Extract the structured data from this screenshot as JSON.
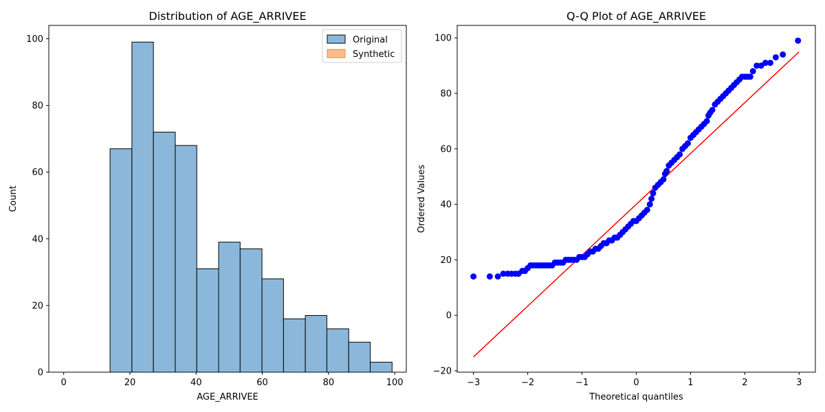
{
  "chart_data": [
    {
      "type": "bar",
      "title": "Distribution of AGE_ARRIVEE",
      "xlabel": "AGE_ARRIVEE",
      "ylabel": "Count",
      "xlim": [
        -4.5,
        103.5
      ],
      "ylim": [
        0,
        104
      ],
      "xticks": [
        0,
        20,
        40,
        60,
        80,
        100
      ],
      "yticks": [
        0,
        20,
        40,
        60,
        80,
        100
      ],
      "bin_edges": [
        14,
        20.6,
        27.1,
        33.7,
        40.2,
        46.8,
        53.3,
        59.9,
        66.4,
        73.0,
        79.5,
        86.1,
        92.6,
        99.2
      ],
      "series": [
        {
          "name": "Original",
          "values": [
            67,
            99,
            72,
            68,
            31,
            39,
            37,
            28,
            16,
            17,
            13,
            9,
            3
          ],
          "color": "#8bb8da",
          "edge": "#000000"
        },
        {
          "name": "Synthetic",
          "values": [],
          "color": "#ffbb88",
          "edge": "#e08c4a"
        }
      ],
      "legend": "top-right"
    },
    {
      "type": "scatter",
      "title": "Q-Q Plot of AGE_ARRIVEE",
      "xlabel": "Theoretical quantiles",
      "ylabel": "Ordered Values",
      "xlim": [
        -3.3,
        3.3
      ],
      "ylim": [
        -20.5,
        104.5
      ],
      "xticks": [
        -3,
        -2,
        -1,
        0,
        1,
        2,
        3
      ],
      "yticks": [
        -20,
        0,
        20,
        40,
        60,
        80,
        100
      ],
      "points_color": "#0000ff",
      "line_color": "#ff0000",
      "fit_line": {
        "x": [
          -3,
          3
        ],
        "y": [
          -15,
          95
        ]
      },
      "points": [
        [
          -3.0,
          14
        ],
        [
          -2.7,
          14
        ],
        [
          -2.55,
          14
        ],
        [
          -2.45,
          15
        ],
        [
          -2.37,
          15
        ],
        [
          -2.3,
          15
        ],
        [
          -2.23,
          15
        ],
        [
          -2.17,
          15
        ],
        [
          -2.1,
          16
        ],
        [
          -2.05,
          16
        ],
        [
          -2.0,
          17
        ],
        [
          -1.95,
          18
        ],
        [
          -1.9,
          18
        ],
        [
          -1.85,
          18
        ],
        [
          -1.8,
          18
        ],
        [
          -1.75,
          18
        ],
        [
          -1.7,
          18
        ],
        [
          -1.65,
          18
        ],
        [
          -1.6,
          18
        ],
        [
          -1.55,
          18
        ],
        [
          -1.5,
          19
        ],
        [
          -1.45,
          19
        ],
        [
          -1.4,
          19
        ],
        [
          -1.35,
          19
        ],
        [
          -1.3,
          20
        ],
        [
          -1.25,
          20
        ],
        [
          -1.2,
          20
        ],
        [
          -1.15,
          20
        ],
        [
          -1.1,
          20
        ],
        [
          -1.05,
          21
        ],
        [
          -1.0,
          21
        ],
        [
          -0.95,
          21
        ],
        [
          -0.9,
          22
        ],
        [
          -0.85,
          23
        ],
        [
          -0.8,
          23
        ],
        [
          -0.75,
          24
        ],
        [
          -0.7,
          24
        ],
        [
          -0.65,
          25
        ],
        [
          -0.6,
          26
        ],
        [
          -0.55,
          26
        ],
        [
          -0.5,
          27
        ],
        [
          -0.45,
          27
        ],
        [
          -0.4,
          28
        ],
        [
          -0.35,
          28
        ],
        [
          -0.3,
          29
        ],
        [
          -0.25,
          30
        ],
        [
          -0.2,
          31
        ],
        [
          -0.15,
          32
        ],
        [
          -0.1,
          33
        ],
        [
          -0.05,
          34
        ],
        [
          0.0,
          34
        ],
        [
          0.05,
          35
        ],
        [
          0.1,
          36
        ],
        [
          0.15,
          37
        ],
        [
          0.2,
          38
        ],
        [
          0.25,
          40
        ],
        [
          0.28,
          42
        ],
        [
          0.31,
          44
        ],
        [
          0.35,
          46
        ],
        [
          0.4,
          47
        ],
        [
          0.45,
          48
        ],
        [
          0.5,
          49
        ],
        [
          0.53,
          51
        ],
        [
          0.56,
          52
        ],
        [
          0.6,
          54
        ],
        [
          0.65,
          55
        ],
        [
          0.7,
          56
        ],
        [
          0.75,
          57
        ],
        [
          0.8,
          58
        ],
        [
          0.85,
          60
        ],
        [
          0.9,
          61
        ],
        [
          0.95,
          62
        ],
        [
          1.0,
          64
        ],
        [
          1.05,
          65
        ],
        [
          1.1,
          66
        ],
        [
          1.15,
          67
        ],
        [
          1.2,
          68
        ],
        [
          1.25,
          69
        ],
        [
          1.3,
          70
        ],
        [
          1.33,
          72
        ],
        [
          1.36,
          73
        ],
        [
          1.4,
          74
        ],
        [
          1.45,
          76
        ],
        [
          1.5,
          77
        ],
        [
          1.55,
          78
        ],
        [
          1.6,
          79
        ],
        [
          1.65,
          80
        ],
        [
          1.7,
          81
        ],
        [
          1.75,
          82
        ],
        [
          1.8,
          83
        ],
        [
          1.85,
          84
        ],
        [
          1.9,
          85
        ],
        [
          1.95,
          86
        ],
        [
          2.0,
          86
        ],
        [
          2.05,
          86
        ],
        [
          2.1,
          86
        ],
        [
          2.15,
          88
        ],
        [
          2.22,
          90
        ],
        [
          2.3,
          90
        ],
        [
          2.38,
          91
        ],
        [
          2.47,
          91
        ],
        [
          2.57,
          93
        ],
        [
          2.7,
          94
        ],
        [
          2.98,
          99
        ]
      ]
    }
  ]
}
